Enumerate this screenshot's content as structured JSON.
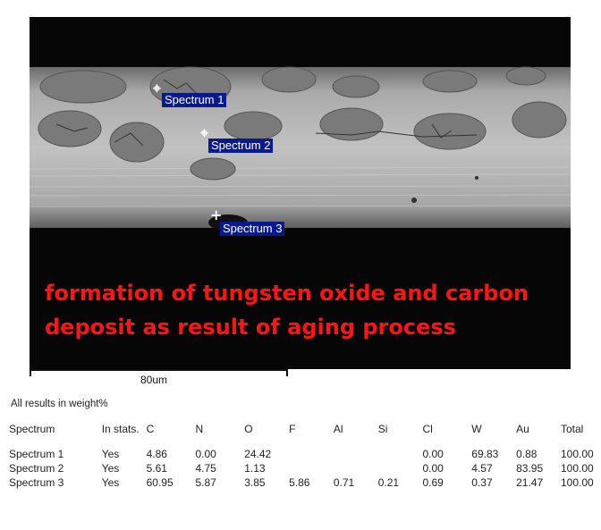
{
  "micrograph": {
    "spectra": [
      "Spectrum 1",
      "Spectrum 2",
      "Spectrum 3"
    ],
    "caption_line1": "formation of tungsten oxide and carbon",
    "caption_line2": "deposit as result of aging process",
    "scale_label": "80um"
  },
  "results": {
    "title": "All results in weight%",
    "columns": [
      "Spectrum",
      "In stats.",
      "C",
      "N",
      "O",
      "F",
      "Al",
      "Si",
      "Cl",
      "W",
      "Au",
      "Total"
    ],
    "rows": [
      [
        "Spectrum 1",
        "Yes",
        "4.86",
        "0.00",
        "24.42",
        "",
        "",
        "",
        "0.00",
        "69.83",
        "0.88",
        "100.00"
      ],
      [
        "Spectrum 2",
        "Yes",
        "5.61",
        "4.75",
        "1.13",
        "",
        "",
        "",
        "0.00",
        "4.57",
        "83.95",
        "100.00"
      ],
      [
        "Spectrum 3",
        "Yes",
        "60.95",
        "5.87",
        "3.85",
        "5.86",
        "0.71",
        "0.21",
        "0.69",
        "0.37",
        "21.47",
        "100.00"
      ]
    ]
  },
  "colors": {
    "caption": "#ff1414",
    "label_bg": "#0b1a8a"
  }
}
